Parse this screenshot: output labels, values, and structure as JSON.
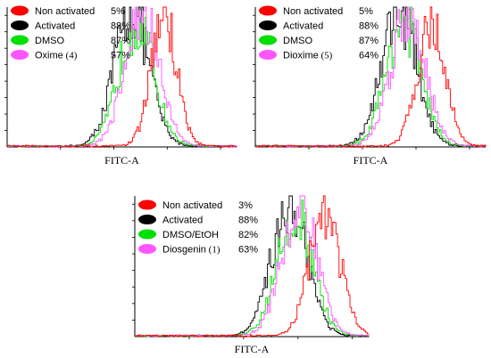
{
  "chart_data": [
    {
      "type": "line",
      "xlabel": "FITC-A",
      "ylabel": "",
      "legend_position": "top-left",
      "series": [
        {
          "name": "Non activated",
          "compound_number": "",
          "percent": "5%",
          "color": "#ff0000",
          "center": 0.68,
          "width": 0.055,
          "height": 0.95
        },
        {
          "name": "Activated",
          "compound_number": "",
          "percent": "88%",
          "color": "#000000",
          "center": 0.54,
          "width": 0.075,
          "height": 0.98
        },
        {
          "name": "DMSO",
          "compound_number": "",
          "percent": "87%",
          "color": "#00e000",
          "center": 0.56,
          "width": 0.075,
          "height": 0.9
        },
        {
          "name": "Oxime",
          "compound_number": "(4)",
          "percent": "57%",
          "color": "#ff55ff",
          "center": 0.585,
          "width": 0.075,
          "height": 0.93
        }
      ]
    },
    {
      "type": "line",
      "xlabel": "FITC-A",
      "ylabel": "",
      "legend_position": "top-left",
      "series": [
        {
          "name": "Non activated",
          "compound_number": "",
          "percent": "5%",
          "color": "#ff0000",
          "center": 0.76,
          "width": 0.06,
          "height": 0.88
        },
        {
          "name": "Activated",
          "compound_number": "",
          "percent": "88%",
          "color": "#000000",
          "center": 0.62,
          "width": 0.075,
          "height": 0.98
        },
        {
          "name": "DMSO",
          "compound_number": "",
          "percent": "87%",
          "color": "#00e000",
          "center": 0.64,
          "width": 0.075,
          "height": 0.9
        },
        {
          "name": "Dioxime",
          "compound_number": "(5)",
          "percent": "64%",
          "color": "#ff55ff",
          "center": 0.66,
          "width": 0.075,
          "height": 0.95
        }
      ]
    },
    {
      "type": "line",
      "xlabel": "FITC-A",
      "ylabel": "",
      "legend_position": "top-left",
      "series": [
        {
          "name": "Non activated",
          "compound_number": "",
          "percent": "3%",
          "color": "#ff0000",
          "center": 0.81,
          "width": 0.065,
          "height": 0.88
        },
        {
          "name": "Activated",
          "compound_number": "",
          "percent": "88%",
          "color": "#000000",
          "center": 0.66,
          "width": 0.075,
          "height": 0.96
        },
        {
          "name": "DMSO/EtOH",
          "compound_number": "",
          "percent": "82%",
          "color": "#00e000",
          "center": 0.68,
          "width": 0.075,
          "height": 0.88
        },
        {
          "name": "Diosgenin",
          "compound_number": "(1)",
          "percent": "63%",
          "color": "#ff55ff",
          "center": 0.7,
          "width": 0.075,
          "height": 0.92
        }
      ]
    }
  ]
}
